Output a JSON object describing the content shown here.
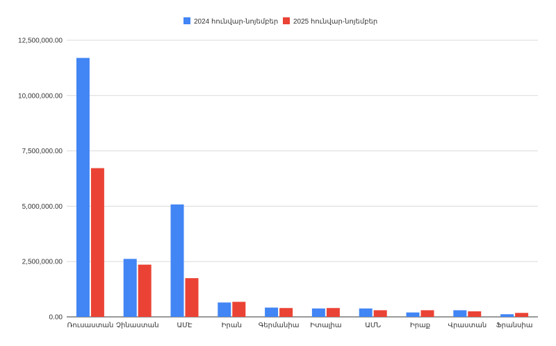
{
  "chart_data": {
    "type": "bar",
    "title": "",
    "xlabel": "",
    "ylabel": "",
    "ylim": [
      0,
      12500000
    ],
    "yticks": [
      0,
      2500000,
      5000000,
      7500000,
      10000000,
      12500000
    ],
    "ytick_labels": [
      "0.00",
      "2,500,000.00",
      "5,000,000.00",
      "7,500,000.00",
      "10,000,000.00",
      "12,500,000.00"
    ],
    "grid": true,
    "legend_position": "top-center",
    "categories": [
      "Ռուսաստան",
      "Չինաստան",
      "ԱՄԷ",
      "Իրան",
      "Գերմանիա",
      "Իտալիա",
      "ԱՄՆ",
      "Իրաք",
      "Վրաստան",
      "Ֆրանսիա"
    ],
    "series": [
      {
        "name": "2024 հունվար-նոյեմբեր",
        "color": "#4285f4",
        "values": [
          11700000,
          2620000,
          5080000,
          650000,
          420000,
          380000,
          380000,
          200000,
          300000,
          120000
        ]
      },
      {
        "name": "2025 հունվար-նոյեմբեր",
        "color": "#ea4335",
        "values": [
          6720000,
          2360000,
          1750000,
          680000,
          400000,
          400000,
          300000,
          300000,
          250000,
          180000
        ]
      }
    ]
  }
}
